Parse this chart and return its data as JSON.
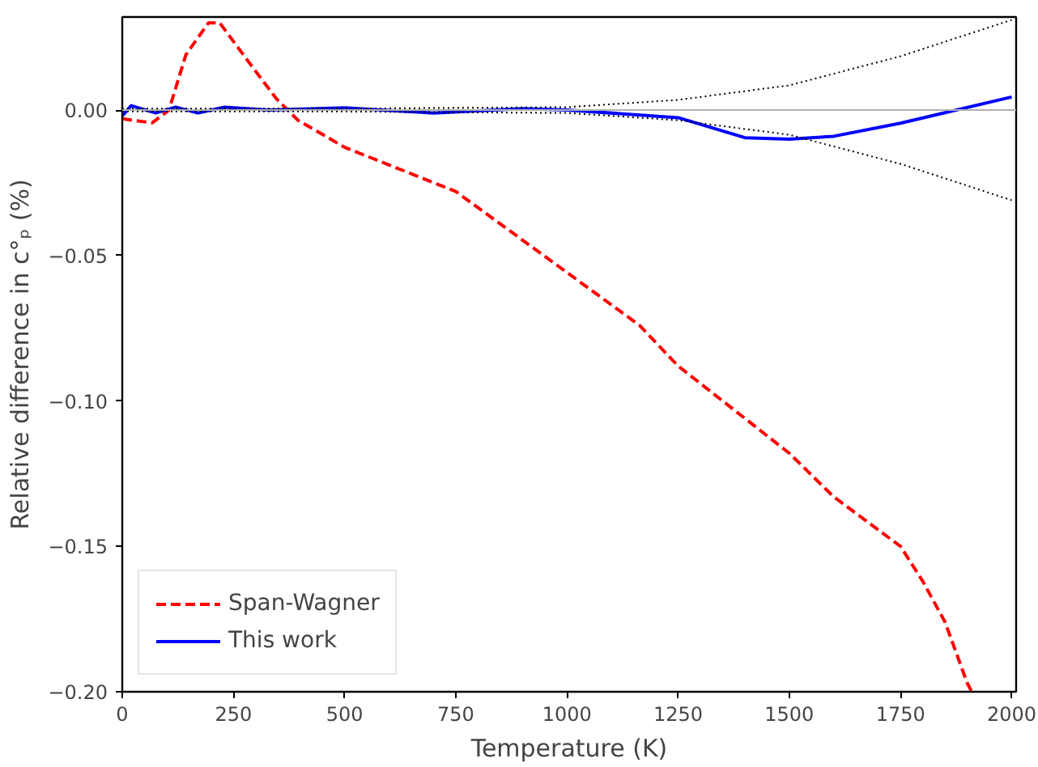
{
  "chart_data": {
    "type": "line",
    "xlabel": "Temperature (K)",
    "ylabel": "Relative difference in c°ₚ (%)",
    "xlim": [
      0,
      2010
    ],
    "ylim": [
      -0.2,
      0.032
    ],
    "xticks": [
      0,
      250,
      500,
      750,
      1000,
      1250,
      1500,
      1750,
      2000
    ],
    "yticks": [
      {
        "value": 0,
        "label": "0.00"
      },
      {
        "value": -0.05,
        "label": "−0.05"
      },
      {
        "value": -0.1,
        "label": "−0.10"
      },
      {
        "value": -0.15,
        "label": "−0.15"
      },
      {
        "value": -0.2,
        "label": "−0.20"
      }
    ],
    "grid": false,
    "legend": "bottom left",
    "ref_lines": [
      {
        "axis": "y",
        "value": 0,
        "color": "#b0b0b0"
      }
    ],
    "series": [
      {
        "name": "Span-Wagner",
        "color": "#ff0000",
        "line_style": "dashed",
        "x": [
          0,
          67,
          105,
          143,
          194,
          219,
          282,
          346,
          395,
          500,
          750,
          953,
          1163,
          1250,
          1500,
          1600,
          1750,
          1800,
          1850,
          1900,
          1910
        ],
        "values": [
          -0.003,
          -0.0044,
          0.0,
          0.019,
          0.03,
          0.03,
          0.017,
          0.004,
          -0.0035,
          -0.0128,
          -0.028,
          -0.0506,
          -0.074,
          -0.088,
          -0.118,
          -0.133,
          -0.15,
          -0.162,
          -0.176,
          -0.197,
          -0.2
        ]
      },
      {
        "name": "This work",
        "color": "#0000ff",
        "line_style": "solid",
        "x": [
          0,
          20,
          75,
          120,
          170,
          230,
          330,
          500,
          700,
          900,
          1000,
          1250,
          1400,
          1500,
          1600,
          1750,
          2000
        ],
        "values": [
          -0.002,
          0.0015,
          -0.001,
          0.001,
          -0.001,
          0.001,
          0.0,
          0.0008,
          -0.001,
          0.0005,
          0.0,
          -0.0026,
          -0.0095,
          -0.01,
          -0.009,
          -0.0045,
          0.0045
        ]
      },
      {
        "color": "#000000",
        "line_style": "dotted",
        "x": [
          0,
          500,
          1000,
          1250,
          1500,
          1750,
          2000
        ],
        "values": [
          0.0005,
          0.0005,
          0.001,
          0.0035,
          0.0085,
          0.0185,
          0.031
        ]
      },
      {
        "color": "#000000",
        "line_style": "dotted",
        "x": [
          0,
          500,
          1000,
          1250,
          1500,
          1750,
          2000
        ],
        "values": [
          -0.0005,
          -0.0005,
          -0.001,
          -0.0035,
          -0.0085,
          -0.0185,
          -0.031
        ]
      }
    ]
  }
}
